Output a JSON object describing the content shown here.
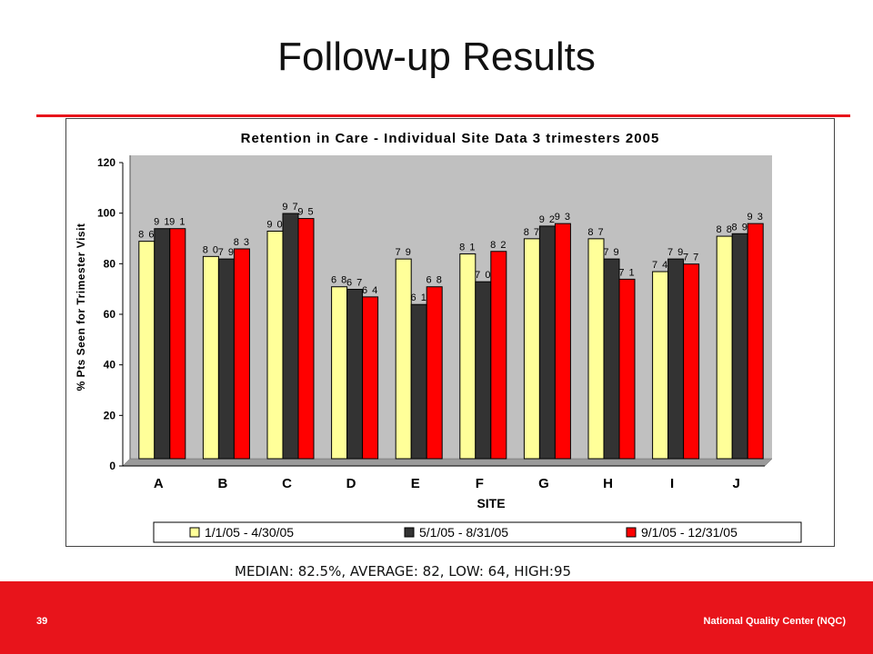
{
  "slide": {
    "title": "Follow-up Results",
    "summary": "MEDIAN: 82.5%, AVERAGE: 82, LOW: 64, HIGH:95",
    "page_number": "39",
    "footer_org": "National Quality Center (NQC)"
  },
  "colors": {
    "accent_red": "#e8141b",
    "plot_bg": "#c0c0c0"
  },
  "chart_data": {
    "type": "bar",
    "title": "Retention in Care - Individual Site Data 3 trimesters 2005",
    "xlabel": "SITE",
    "ylabel": "% Pts Seen for Trimester Visit",
    "ylim": [
      0,
      120
    ],
    "yticks": [
      "0",
      "20",
      "40",
      "60",
      "80",
      "100",
      "120"
    ],
    "grid": false,
    "legend": "bottom",
    "categories": [
      "A",
      "B",
      "C",
      "D",
      "E",
      "F",
      "G",
      "H",
      "I",
      "J"
    ],
    "series": [
      {
        "name": "1/1/05 - 4/30/05",
        "color": "#ffff99",
        "values": [
          86,
          80,
          90,
          68,
          79,
          81,
          87,
          87,
          74,
          88
        ],
        "labels": [
          "8 6",
          "8 0",
          "9 0",
          "6 8",
          "7 9",
          "8 1",
          "8 7",
          "8 7",
          "7 4",
          "8 8"
        ]
      },
      {
        "name": "5/1/05 - 8/31/05",
        "color": "#333333",
        "values": [
          91,
          79,
          97,
          67,
          61,
          70,
          92,
          79,
          79,
          89
        ],
        "labels": [
          "9 1",
          "7 9",
          "9 7",
          "6 7",
          "6 1",
          "7 0",
          "9 2",
          "7 9",
          "7 9",
          "8 9"
        ]
      },
      {
        "name": "9/1/05 - 12/31/05",
        "color": "#ff0000",
        "values": [
          91,
          83,
          95,
          64,
          68,
          82,
          93,
          71,
          77,
          93
        ],
        "labels": [
          "9 1",
          "8 3",
          "9 5",
          "6 4",
          "6 8",
          "8 2",
          "9 3",
          "7 1",
          "7 7",
          "9 3"
        ]
      }
    ]
  }
}
